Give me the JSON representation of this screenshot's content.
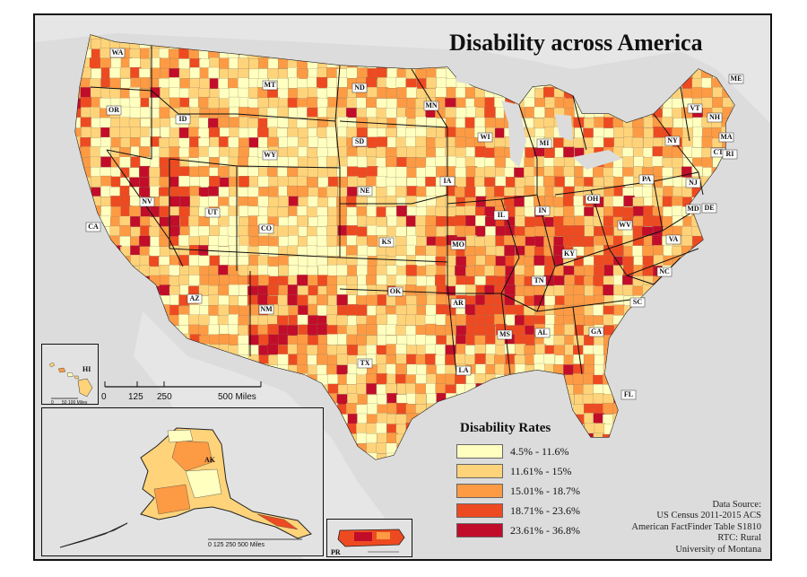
{
  "title": "Disability across America",
  "legend": {
    "title": "Disability Rates",
    "items": [
      {
        "label": "4.5% - 11.6%",
        "color": "#ffffc0"
      },
      {
        "label": "11.61% - 15%",
        "color": "#fed37a"
      },
      {
        "label": "15.01% - 18.7%",
        "color": "#fd9a44"
      },
      {
        "label": "18.71% - 23.6%",
        "color": "#ee4a21"
      },
      {
        "label": "23.61% - 36.8%",
        "color": "#c10d2a"
      }
    ]
  },
  "scale_bar": {
    "ticks": [
      "0",
      "125",
      "250",
      "500 Miles"
    ]
  },
  "alaska_scale": {
    "ticks": [
      "0",
      "125",
      "250",
      "500 Miles"
    ]
  },
  "source_lines": [
    "Data Source:",
    "US Census 2011-2015 ACS",
    "American FactFinder Table S1810",
    "RTC: Rural",
    "University of Montana"
  ],
  "insets": {
    "hawaii": "HI",
    "alaska": "AK",
    "puerto_rico": "PR"
  },
  "states": [
    {
      "abbr": "WA"
    },
    {
      "abbr": "OR"
    },
    {
      "abbr": "ID"
    },
    {
      "abbr": "MT"
    },
    {
      "abbr": "WY"
    },
    {
      "abbr": "NV"
    },
    {
      "abbr": "CA"
    },
    {
      "abbr": "UT"
    },
    {
      "abbr": "CO"
    },
    {
      "abbr": "AZ"
    },
    {
      "abbr": "NM"
    },
    {
      "abbr": "ND"
    },
    {
      "abbr": "SD"
    },
    {
      "abbr": "NE"
    },
    {
      "abbr": "KS"
    },
    {
      "abbr": "OK"
    },
    {
      "abbr": "TX"
    },
    {
      "abbr": "MN"
    },
    {
      "abbr": "IA"
    },
    {
      "abbr": "MO"
    },
    {
      "abbr": "AR"
    },
    {
      "abbr": "LA"
    },
    {
      "abbr": "WI"
    },
    {
      "abbr": "IL"
    },
    {
      "abbr": "MI"
    },
    {
      "abbr": "IN"
    },
    {
      "abbr": "OH"
    },
    {
      "abbr": "KY"
    },
    {
      "abbr": "TN"
    },
    {
      "abbr": "MS"
    },
    {
      "abbr": "AL"
    },
    {
      "abbr": "GA"
    },
    {
      "abbr": "FL"
    },
    {
      "abbr": "SC"
    },
    {
      "abbr": "NC"
    },
    {
      "abbr": "VA"
    },
    {
      "abbr": "WV"
    },
    {
      "abbr": "PA"
    },
    {
      "abbr": "NY"
    },
    {
      "abbr": "VT"
    },
    {
      "abbr": "NH"
    },
    {
      "abbr": "ME"
    },
    {
      "abbr": "MA"
    },
    {
      "abbr": "CT"
    },
    {
      "abbr": "RI"
    },
    {
      "abbr": "NJ"
    },
    {
      "abbr": "DE"
    },
    {
      "abbr": "MD"
    }
  ]
}
